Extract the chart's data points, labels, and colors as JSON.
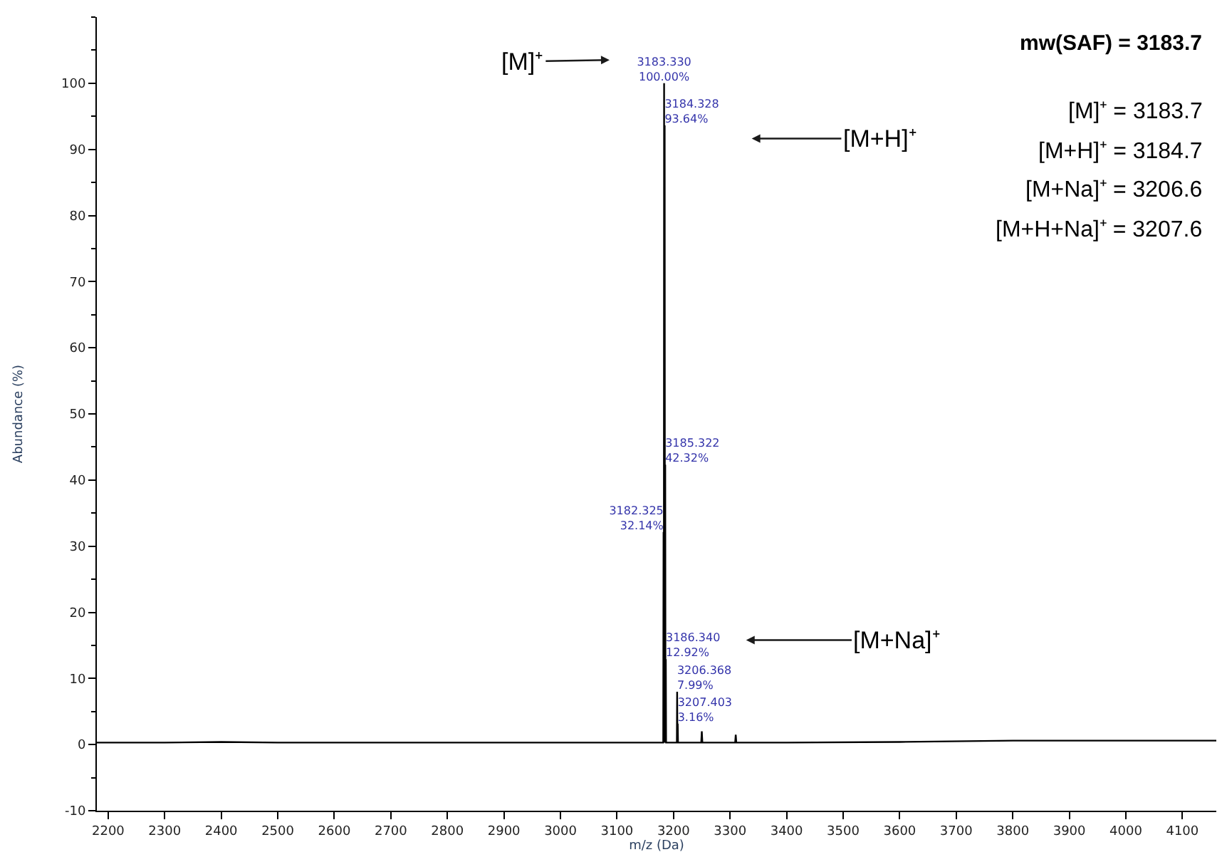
{
  "chart_data": {
    "type": "line",
    "xlabel": "m/z (Da)",
    "ylabel": "Abundance (%)",
    "xlim": [
      2180,
      4160
    ],
    "ylim": [
      -10,
      110
    ],
    "xticks": [
      2200,
      2300,
      2400,
      2500,
      2600,
      2700,
      2800,
      2900,
      3000,
      3100,
      3200,
      3300,
      3400,
      3500,
      3600,
      3700,
      3800,
      3900,
      4000,
      4100
    ],
    "yticks": [
      -10,
      0,
      10,
      20,
      30,
      40,
      50,
      60,
      70,
      80,
      90,
      100
    ],
    "marker": "none",
    "line_style": "solid",
    "x": [
      2180,
      2300,
      2400,
      2500,
      2600,
      2700,
      2800,
      2900,
      3000,
      3100,
      3181.8,
      3182.325,
      3182.8,
      3183.33,
      3183.8,
      3184.328,
      3184.8,
      3185.322,
      3185.8,
      3186.34,
      3186.8,
      3205.9,
      3206.368,
      3206.9,
      3207.403,
      3207.9,
      3249,
      3250,
      3251,
      3309,
      3310,
      3311,
      3400,
      3600,
      3800,
      4000,
      4160
    ],
    "series": [
      {
        "color": "#000000",
        "values": [
          0.3,
          0.3,
          0.4,
          0.3,
          0.3,
          0.3,
          0.3,
          0.3,
          0.3,
          0.3,
          0.3,
          32.14,
          0.3,
          100,
          0.3,
          93.64,
          0.3,
          42.32,
          0.3,
          12.92,
          0.3,
          0.3,
          7.99,
          0.3,
          3.16,
          0.3,
          0.3,
          2,
          0.3,
          0.3,
          1.5,
          0.3,
          0.3,
          0.4,
          0.6,
          0.6,
          0.6
        ],
        "value_labels": [
          null,
          null,
          null,
          null,
          null,
          null,
          null,
          null,
          null,
          null,
          null,
          "3182.325\n32.14%",
          null,
          "3183.330\n100.00%",
          null,
          "3184.328\n93.64%",
          null,
          "3185.322\n42.32%",
          null,
          "3186.340\n12.92%",
          null,
          null,
          "3206.368\n7.99%",
          null,
          "3207.403\n3.16%",
          null,
          null,
          null,
          null,
          null,
          null,
          null,
          null,
          null,
          null,
          null,
          null
        ]
      }
    ],
    "annotations": [
      "[M]⁺",
      "[M+H]⁺",
      "[M+Na]⁺",
      "mw(SAF) = 3183.7",
      "[M]⁺ = 3183.7",
      "[M+H]⁺ = 3184.7",
      "[M+Na]⁺ = 3206.6",
      "[M+H+Na]⁺ = 3207.6"
    ]
  }
}
